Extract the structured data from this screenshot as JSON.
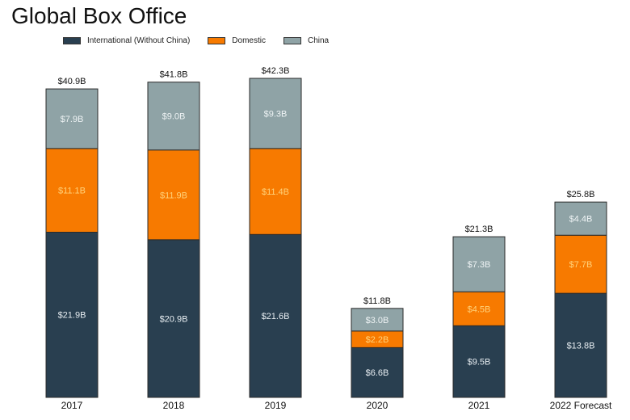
{
  "chart_data": {
    "type": "bar",
    "stacked": true,
    "title": "Global Box Office",
    "xlabel": "",
    "ylabel": "",
    "ylim": [
      0,
      42.3
    ],
    "grid": false,
    "legend_position": "top",
    "categories": [
      "2017",
      "2018",
      "2019",
      "2020",
      "2021",
      "2022 Forecast"
    ],
    "series": [
      {
        "name": "International (Without China)",
        "color": "#293f50",
        "values": [
          21.9,
          20.9,
          21.6,
          6.6,
          9.5,
          13.8
        ],
        "labels": [
          "$21.9B",
          "$20.9B",
          "$21.6B",
          "$6.6B",
          "$9.5B",
          "$13.8B"
        ],
        "label_color": "#e8eef2"
      },
      {
        "name": "Domestic",
        "color": "#f77a00",
        "values": [
          11.1,
          11.9,
          11.4,
          2.2,
          4.5,
          7.7
        ],
        "labels": [
          "$11.1B",
          "$11.9B",
          "$11.4B",
          "$2.2B",
          "$4.5B",
          "$7.7B"
        ],
        "label_color": "#ffd27a"
      },
      {
        "name": "China",
        "color": "#8fa3a6",
        "values": [
          7.9,
          9.0,
          9.3,
          3.0,
          7.3,
          4.4
        ],
        "labels": [
          "$7.9B",
          "$9.0B",
          "$9.3B",
          "$3.0B",
          "$7.3B",
          "$4.4B"
        ],
        "label_color": "#eef3f4"
      }
    ],
    "totals": [
      40.9,
      41.8,
      42.3,
      11.8,
      21.3,
      25.8
    ],
    "total_labels": [
      "$40.9B",
      "$41.8B",
      "$42.3B",
      "$11.8B",
      "$21.3B",
      "$25.8B"
    ]
  }
}
